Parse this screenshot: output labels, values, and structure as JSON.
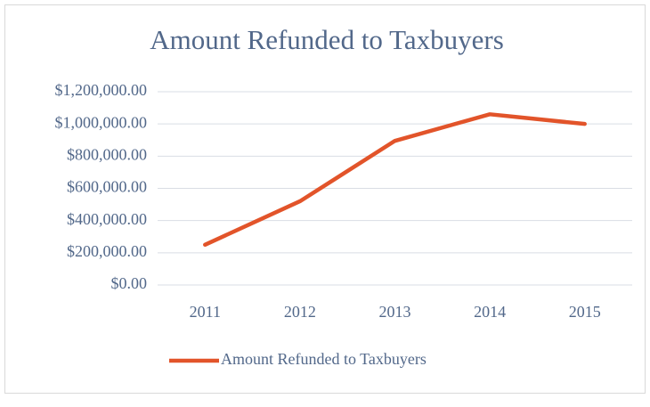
{
  "chart_data": {
    "type": "line",
    "title": "Amount Refunded to Taxbuyers",
    "categories": [
      "2011",
      "2012",
      "2013",
      "2014",
      "2015"
    ],
    "series": [
      {
        "name": "Amount Refunded to Taxbuyers",
        "color": "#e2542a",
        "values": [
          250000,
          520000,
          895000,
          1060000,
          1000000
        ]
      }
    ],
    "ylim": [
      0,
      1200000
    ],
    "yticks": [
      {
        "value": 0,
        "label": "$0.00"
      },
      {
        "value": 200000,
        "label": "$200,000.00"
      },
      {
        "value": 400000,
        "label": "$400,000.00"
      },
      {
        "value": 600000,
        "label": "$600,000.00"
      },
      {
        "value": 800000,
        "label": "$800,000.00"
      },
      {
        "value": 1000000,
        "label": "$1,000,000.00"
      },
      {
        "value": 1200000,
        "label": "$1,200,000.00"
      }
    ],
    "grid": true,
    "legend": "bottom"
  }
}
